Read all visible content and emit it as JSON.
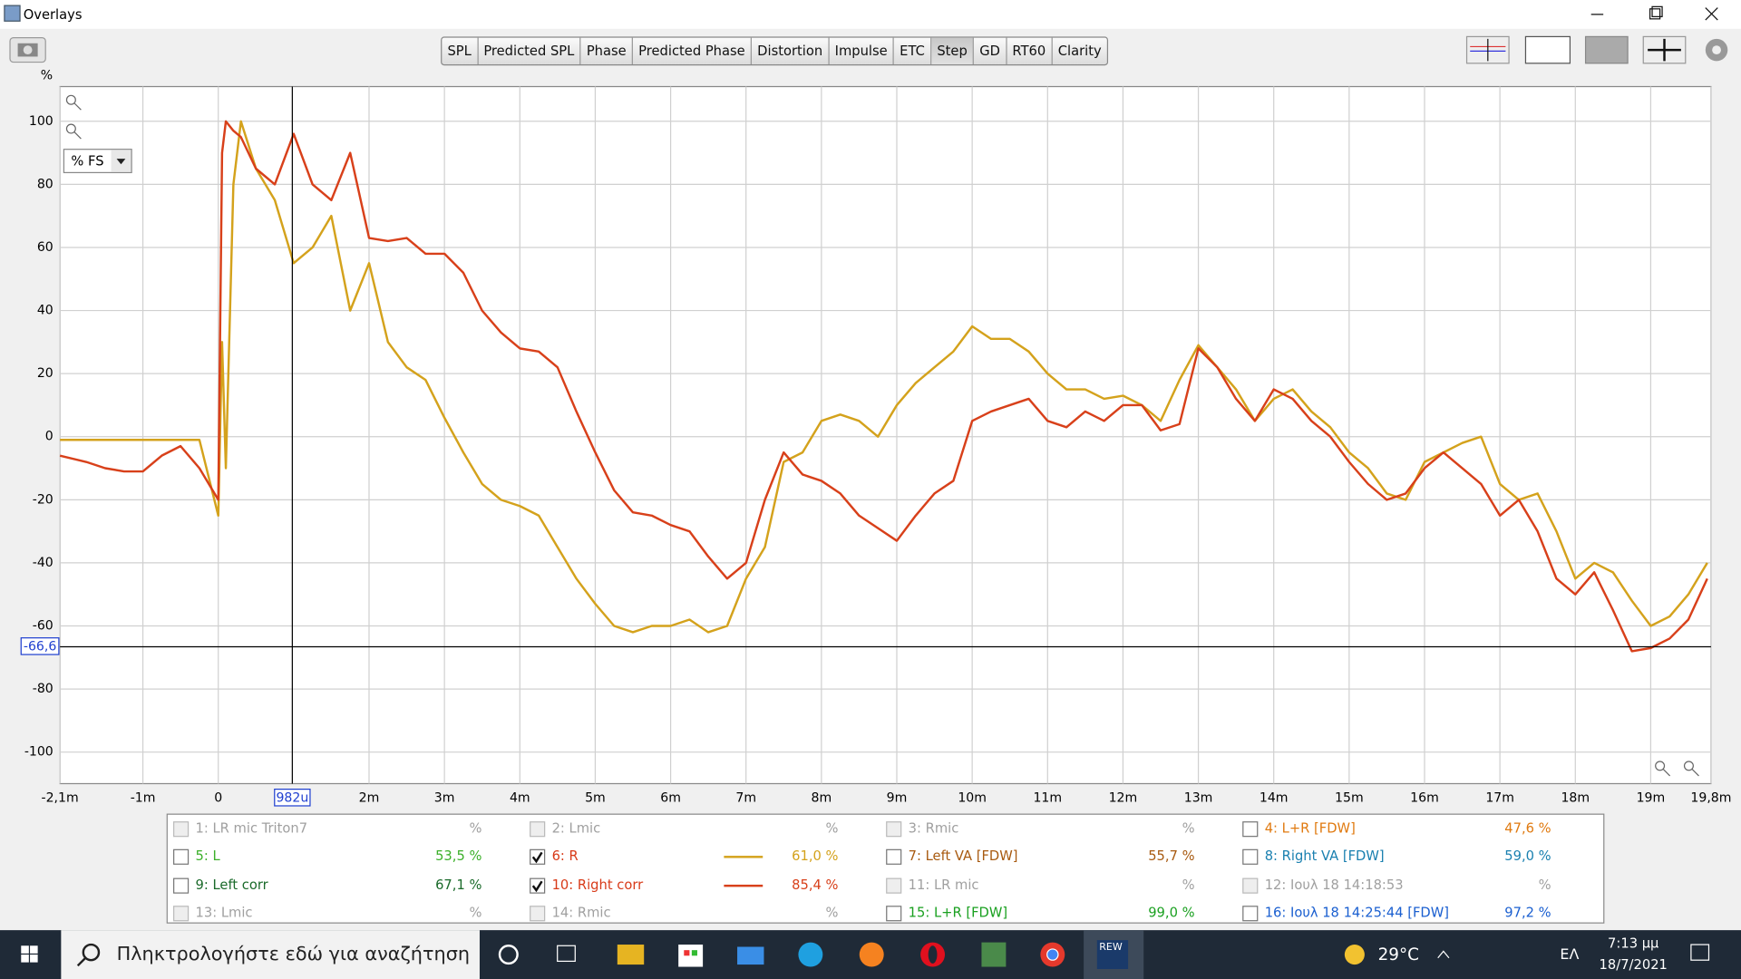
{
  "window": {
    "title": "Overlays"
  },
  "toolbar": {
    "tabs": [
      "SPL",
      "Predicted SPL",
      "Phase",
      "Predicted Phase",
      "Distortion",
      "Impulse",
      "ETC",
      "Step",
      "GD",
      "RT60",
      "Clarity"
    ],
    "active": 7
  },
  "chart_data": {
    "type": "line",
    "y_unit": "%",
    "y_mode": "% FS",
    "grid": true,
    "xlim": [
      -2.1,
      19.8
    ],
    "ylim": [
      -110,
      111
    ],
    "xticks": [
      {
        "value": -2.1,
        "label": "-2,1m"
      },
      {
        "value": -1,
        "label": "-1m"
      },
      0,
      {
        "value": 2,
        "label": "2m"
      },
      {
        "value": 3,
        "label": "3m"
      },
      {
        "value": 4,
        "label": "4m"
      },
      {
        "value": 5,
        "label": "5m"
      },
      {
        "value": 6,
        "label": "6m"
      },
      {
        "value": 7,
        "label": "7m"
      },
      {
        "value": 8,
        "label": "8m"
      },
      {
        "value": 9,
        "label": "9m"
      },
      {
        "value": 10,
        "label": "10m"
      },
      {
        "value": 11,
        "label": "11m"
      },
      {
        "value": 12,
        "label": "12m"
      },
      {
        "value": 13,
        "label": "13m"
      },
      {
        "value": 14,
        "label": "14m"
      },
      {
        "value": 15,
        "label": "15m"
      },
      {
        "value": 16,
        "label": "16m"
      },
      {
        "value": 17,
        "label": "17m"
      },
      {
        "value": 18,
        "label": "18m"
      },
      {
        "value": 19,
        "label": "19m"
      },
      {
        "value": 19.8,
        "label": "19,8m"
      }
    ],
    "yticks": [
      100,
      80,
      60,
      40,
      20,
      0,
      -20,
      -40,
      -60,
      -80,
      -100
    ],
    "cursor": {
      "x": {
        "value": 0.982,
        "label": "982u"
      },
      "y": {
        "value": -66.6,
        "label": "-66,6"
      }
    },
    "x": [
      -2.1,
      -1.75,
      -1.5,
      -1.25,
      -1,
      -0.75,
      -0.5,
      -0.25,
      0,
      0.05,
      0.1,
      0.2,
      0.3,
      0.5,
      0.75,
      1,
      1.25,
      1.5,
      1.75,
      2,
      2.25,
      2.5,
      2.75,
      3,
      3.25,
      3.5,
      3.75,
      4,
      4.25,
      4.5,
      4.75,
      5,
      5.25,
      5.5,
      5.75,
      6,
      6.25,
      6.5,
      6.75,
      7,
      7.25,
      7.5,
      7.75,
      8,
      8.25,
      8.5,
      8.75,
      9,
      9.25,
      9.5,
      9.75,
      10,
      10.25,
      10.5,
      10.75,
      11,
      11.25,
      11.5,
      11.75,
      12,
      12.25,
      12.5,
      12.75,
      13,
      13.25,
      13.5,
      13.75,
      14,
      14.25,
      14.5,
      14.75,
      15,
      15.25,
      15.5,
      15.75,
      16,
      16.25,
      16.5,
      16.75,
      17,
      17.25,
      17.5,
      17.75,
      18,
      18.25,
      18.5,
      18.75,
      19,
      19.25,
      19.5,
      19.75
    ],
    "series": [
      {
        "name": "6: R",
        "color": "#d4a21c",
        "values": [
          -1,
          -1,
          -1,
          -1,
          -1,
          -1,
          -1,
          -1,
          -25,
          30,
          -10,
          80,
          100,
          85,
          75,
          55,
          60,
          70,
          40,
          55,
          30,
          22,
          18,
          6,
          -5,
          -15,
          -20,
          -22,
          -25,
          -35,
          -45,
          -53,
          -60,
          -62,
          -60,
          -60,
          -58,
          -62,
          -60,
          -45,
          -35,
          -8,
          -5,
          5,
          7,
          5,
          0,
          10,
          17,
          22,
          27,
          35,
          31,
          31,
          27,
          20,
          15,
          15,
          12,
          13,
          10,
          5,
          18,
          29,
          22,
          15,
          5,
          12,
          15,
          8,
          3,
          -5,
          -10,
          -18,
          -20,
          -8,
          -5,
          -2,
          0,
          -15,
          -20,
          -18,
          -30,
          -45,
          -40,
          -43,
          -52,
          -60,
          -57,
          -50,
          -40
        ]
      },
      {
        "name": "10: Right corr",
        "color": "#d8401a",
        "values": [
          -6,
          -8,
          -10,
          -11,
          -11,
          -6,
          -3,
          -10,
          -20,
          90,
          100,
          97,
          95,
          85,
          80,
          96,
          80,
          75,
          90,
          63,
          62,
          63,
          58,
          58,
          52,
          40,
          33,
          28,
          27,
          22,
          8,
          -5,
          -17,
          -24,
          -25,
          -28,
          -30,
          -38,
          -45,
          -40,
          -20,
          -5,
          -12,
          -14,
          -18,
          -25,
          -29,
          -33,
          -25,
          -18,
          -14,
          5,
          8,
          10,
          12,
          5,
          3,
          8,
          5,
          10,
          10,
          2,
          4,
          28,
          22,
          12,
          5,
          15,
          12,
          5,
          0,
          -8,
          -15,
          -20,
          -18,
          -10,
          -5,
          -10,
          -15,
          -25,
          -20,
          -30,
          -45,
          -50,
          -43,
          -55,
          -68,
          -67,
          -64,
          -58,
          -45
        ]
      }
    ]
  },
  "legend": {
    "items": [
      {
        "label": "1: LR mic Triton7",
        "value": "%",
        "checked": false,
        "enabled": false,
        "color": "#a0a0a0"
      },
      {
        "label": "2: Lmic",
        "value": "%",
        "checked": false,
        "enabled": false,
        "color": "#a0a0a0"
      },
      {
        "label": "3: Rmic",
        "value": "%",
        "checked": false,
        "enabled": false,
        "color": "#a0a0a0"
      },
      {
        "label": "4: L+R [FDW]",
        "value": "47,6 %",
        "checked": false,
        "enabled": true,
        "color": "#e07a10"
      },
      {
        "label": "5: L",
        "value": "53,5 %",
        "checked": false,
        "enabled": true,
        "color": "#3cb02a"
      },
      {
        "series": 0,
        "value": "61,0 %",
        "checked": true,
        "enabled": true,
        "color": "#d83a18"
      },
      {
        "label": "7: Left VA [FDW]",
        "value": "55,7 %",
        "checked": false,
        "enabled": true,
        "color": "#a85a10"
      },
      {
        "label": "8: Right VA [FDW]",
        "value": "59,0 %",
        "checked": false,
        "enabled": true,
        "color": "#1a80b0"
      },
      {
        "label": "9: Left corr",
        "value": "67,1 %",
        "checked": false,
        "enabled": true,
        "color": "#1a6a2a"
      },
      {
        "series": 1,
        "value": "85,4 %",
        "checked": true,
        "enabled": true,
        "color": "#d83a18"
      },
      {
        "label": "11: LR mic",
        "value": "%",
        "checked": false,
        "enabled": false,
        "color": "#a0a0a0"
      },
      {
        "label": "12: Ιουλ 18 14:18:53",
        "value": "%",
        "checked": false,
        "enabled": false,
        "color": "#a0a0a0"
      },
      {
        "label": "13: Lmic",
        "value": "%",
        "checked": false,
        "enabled": false,
        "color": "#a0a0a0"
      },
      {
        "label": "14: Rmic",
        "value": "%",
        "checked": false,
        "enabled": false,
        "color": "#a0a0a0"
      },
      {
        "label": "15: L+R [FDW]",
        "value": "99,0 %",
        "checked": false,
        "enabled": true,
        "color": "#1aa020"
      },
      {
        "label": "16: Ιουλ 18 14:25:44 [FDW]",
        "value": "97,2 %",
        "checked": false,
        "enabled": true,
        "color": "#1a5fd0"
      }
    ]
  },
  "taskbar": {
    "search": "Πληκτρολογήστε εδώ για αναζήτηση",
    "app_label": "REW",
    "weather": "29°C",
    "language": "ΕΛ",
    "time": "7:13 μμ",
    "date": "18/7/2021"
  }
}
